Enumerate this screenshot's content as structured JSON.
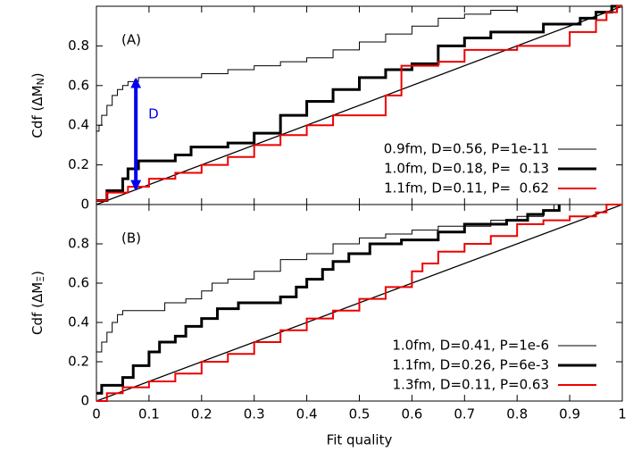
{
  "chart_data": [
    {
      "type": "step",
      "panel_label": "(A)",
      "y_label": {
        "text": "Cdf (ΔM",
        "sub": "N",
        "end": ")"
      },
      "xlim": [
        0,
        1
      ],
      "ylim": [
        0,
        1
      ],
      "xticks": [
        0,
        0.1,
        0.2,
        0.3,
        0.4,
        0.5,
        0.6,
        0.7,
        0.8,
        0.9,
        1
      ],
      "yticks": [
        0,
        0.2,
        0.4,
        0.6,
        0.8
      ],
      "reference_diagonal": true,
      "legend": "lower right",
      "arrow": {
        "label": "D",
        "color": "#0000ee",
        "x": 0.075,
        "y": [
          0.08,
          0.63
        ]
      },
      "series": [
        {
          "name": "0.9fm, D=0.56, P=1e-11",
          "color": "#000000",
          "width": 1,
          "x": [
            0,
            0.005,
            0.01,
            0.02,
            0.03,
            0.04,
            0.05,
            0.06,
            0.08,
            0.2,
            0.25,
            0.3,
            0.35,
            0.4,
            0.45,
            0.5,
            0.55,
            0.6,
            0.65,
            0.7,
            0.75,
            0.8,
            1
          ],
          "values": [
            0.37,
            0.4,
            0.45,
            0.5,
            0.55,
            0.58,
            0.6,
            0.62,
            0.64,
            0.66,
            0.68,
            0.7,
            0.72,
            0.74,
            0.78,
            0.82,
            0.86,
            0.9,
            0.94,
            0.96,
            0.98,
            1,
            1
          ]
        },
        {
          "name": "1.0fm, D=0.18, P=  0.13",
          "color": "#000000",
          "width": 3,
          "x": [
            0,
            0.02,
            0.05,
            0.06,
            0.08,
            0.15,
            0.18,
            0.25,
            0.3,
            0.35,
            0.4,
            0.45,
            0.5,
            0.55,
            0.6,
            0.65,
            0.7,
            0.75,
            0.85,
            0.92,
            0.95,
            0.98,
            1
          ],
          "values": [
            0.02,
            0.07,
            0.13,
            0.18,
            0.22,
            0.25,
            0.29,
            0.31,
            0.36,
            0.45,
            0.52,
            0.58,
            0.64,
            0.68,
            0.71,
            0.8,
            0.84,
            0.87,
            0.91,
            0.94,
            0.97,
            1,
            1
          ]
        },
        {
          "name": "1.1fm, D=0.11, P=  0.62",
          "color": "#ee0000",
          "width": 2,
          "x": [
            0,
            0.02,
            0.06,
            0.1,
            0.15,
            0.2,
            0.25,
            0.3,
            0.35,
            0.4,
            0.45,
            0.55,
            0.58,
            0.65,
            0.7,
            0.8,
            0.9,
            0.95,
            0.97,
            0.99,
            1
          ],
          "values": [
            0.02,
            0.06,
            0.09,
            0.13,
            0.16,
            0.2,
            0.24,
            0.3,
            0.35,
            0.4,
            0.45,
            0.55,
            0.7,
            0.72,
            0.78,
            0.8,
            0.87,
            0.93,
            0.97,
            1,
            1
          ]
        }
      ]
    },
    {
      "type": "step",
      "panel_label": "(B)",
      "y_label": {
        "text": "Cdf (ΔM",
        "sub": "Ξ",
        "end": ")"
      },
      "x_label": "Fit quality",
      "xlim": [
        0,
        1
      ],
      "ylim": [
        0,
        1
      ],
      "xticks": [
        0,
        0.1,
        0.2,
        0.3,
        0.4,
        0.5,
        0.6,
        0.7,
        0.8,
        0.9,
        1
      ],
      "yticks": [
        0,
        0.2,
        0.4,
        0.6,
        0.8
      ],
      "reference_diagonal": true,
      "legend": "lower right",
      "series": [
        {
          "name": "1.0fm, D=0.41, P=1e-6",
          "color": "#000000",
          "width": 1,
          "x": [
            0,
            0.01,
            0.02,
            0.03,
            0.04,
            0.05,
            0.13,
            0.17,
            0.2,
            0.22,
            0.25,
            0.3,
            0.35,
            0.4,
            0.45,
            0.5,
            0.55,
            0.6,
            0.65,
            0.75,
            0.8,
            0.85,
            0.87,
            1
          ],
          "values": [
            0.25,
            0.3,
            0.35,
            0.4,
            0.44,
            0.46,
            0.5,
            0.52,
            0.56,
            0.6,
            0.62,
            0.66,
            0.72,
            0.75,
            0.8,
            0.83,
            0.85,
            0.87,
            0.89,
            0.92,
            0.94,
            0.97,
            1,
            1
          ]
        },
        {
          "name": "1.1fm, D=0.26, P=6e-3",
          "color": "#000000",
          "width": 3,
          "x": [
            0,
            0.01,
            0.05,
            0.07,
            0.1,
            0.12,
            0.15,
            0.17,
            0.2,
            0.23,
            0.27,
            0.35,
            0.38,
            0.4,
            0.43,
            0.45,
            0.48,
            0.52,
            0.58,
            0.65,
            0.7,
            0.78,
            0.82,
            0.85,
            0.88
          ],
          "values": [
            0.04,
            0.08,
            0.12,
            0.18,
            0.25,
            0.3,
            0.33,
            0.38,
            0.42,
            0.47,
            0.5,
            0.53,
            0.58,
            0.62,
            0.67,
            0.71,
            0.75,
            0.8,
            0.82,
            0.86,
            0.9,
            0.92,
            0.95,
            0.97,
            1
          ]
        },
        {
          "name": "1.3fm, D=0.11, P=0.63",
          "color": "#ee0000",
          "width": 2,
          "x": [
            0,
            0.02,
            0.05,
            0.1,
            0.15,
            0.2,
            0.25,
            0.3,
            0.35,
            0.4,
            0.45,
            0.5,
            0.55,
            0.6,
            0.62,
            0.65,
            0.7,
            0.75,
            0.8,
            0.85,
            0.9,
            0.95,
            0.97,
            1
          ],
          "values": [
            0,
            0.04,
            0.07,
            0.1,
            0.14,
            0.2,
            0.24,
            0.3,
            0.36,
            0.42,
            0.46,
            0.52,
            0.58,
            0.66,
            0.7,
            0.76,
            0.8,
            0.84,
            0.9,
            0.92,
            0.94,
            0.96,
            1,
            1
          ]
        }
      ]
    }
  ]
}
